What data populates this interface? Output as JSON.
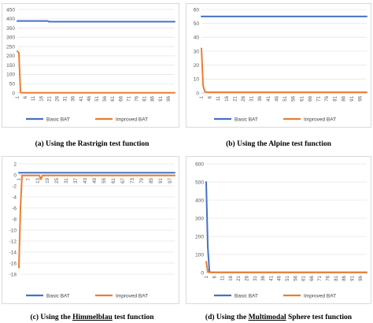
{
  "chart_data": [
    {
      "type": "line",
      "caption": "(a)  Using the Rastrigin test function",
      "ylim": [
        0,
        450
      ],
      "yticks": [
        0,
        50,
        100,
        150,
        200,
        250,
        300,
        350,
        400,
        450
      ],
      "xticks": [
        1,
        6,
        11,
        16,
        21,
        26,
        31,
        36,
        41,
        46,
        51,
        56,
        61,
        66,
        71,
        76,
        81,
        86,
        91,
        96
      ],
      "x_count": 100,
      "legend_position": "bottom",
      "series": [
        {
          "name": "Basic BAT",
          "color": "#4472c4",
          "points": [
            [
              1,
              388
            ],
            [
              20,
              388
            ],
            [
              21,
              384
            ],
            [
              100,
              384
            ]
          ]
        },
        {
          "name": "Improved BAT",
          "color": "#ed7d31",
          "points": [
            [
              1,
              225
            ],
            [
              2,
              215
            ],
            [
              3,
              5
            ],
            [
              4,
              1
            ],
            [
              100,
              1
            ]
          ]
        }
      ]
    },
    {
      "type": "line",
      "caption": "(b) Using the Alpine test function",
      "ylim": [
        0,
        60
      ],
      "yticks": [
        0,
        10,
        20,
        30,
        40,
        50,
        60
      ],
      "xticks": [
        1,
        6,
        11,
        16,
        21,
        26,
        31,
        36,
        41,
        46,
        51,
        56,
        61,
        66,
        71,
        76,
        81,
        86,
        91,
        96
      ],
      "x_count": 100,
      "legend_position": "bottom",
      "series": [
        {
          "name": "Basic BAT",
          "color": "#4472c4",
          "points": [
            [
              1,
              55
            ],
            [
              100,
              55
            ]
          ]
        },
        {
          "name": "Improved BAT",
          "color": "#ed7d31",
          "points": [
            [
              1,
              32
            ],
            [
              2,
              5
            ],
            [
              3,
              1
            ],
            [
              4,
              0.5
            ],
            [
              100,
              0.5
            ]
          ]
        }
      ]
    },
    {
      "type": "line",
      "caption_prefix": "(c) Using the ",
      "caption_under": "Himmelblau",
      "caption_suffix": " test function",
      "ylim": [
        -18,
        2
      ],
      "yticks": [
        -18,
        -16,
        -14,
        -12,
        -10,
        -8,
        -6,
        -4,
        -2,
        0,
        2
      ],
      "xticks": [
        1,
        7,
        13,
        19,
        25,
        31,
        37,
        43,
        49,
        55,
        61,
        67,
        73,
        79,
        85,
        91,
        97
      ],
      "x_count": 100,
      "x_axis_at": 0,
      "legend_position": "bottom",
      "series": [
        {
          "name": "Basic BAT",
          "color": "#4472c4",
          "points": [
            [
              1,
              0.4
            ],
            [
              100,
              0.4
            ]
          ]
        },
        {
          "name": "Improved BAT",
          "color": "#ed7d31",
          "points": [
            [
              1,
              -16.8
            ],
            [
              2,
              -6
            ],
            [
              3,
              -0.1
            ],
            [
              14,
              -0.1
            ],
            [
              15,
              -0.8
            ],
            [
              16,
              -0.1
            ],
            [
              100,
              -0.1
            ]
          ]
        }
      ]
    },
    {
      "type": "line",
      "caption_prefix": "(d) Using the ",
      "caption_under": "Multimodal",
      "caption_suffix": " Sphere test function",
      "ylim": [
        0,
        600
      ],
      "yticks": [
        0,
        100,
        200,
        300,
        400,
        500,
        600
      ],
      "xticks": [
        1,
        6,
        11,
        16,
        21,
        26,
        31,
        36,
        41,
        46,
        51,
        56,
        61,
        66,
        71,
        76,
        81,
        86,
        91,
        96
      ],
      "x_count": 100,
      "legend_position": "bottom",
      "series": [
        {
          "name": "Basic BAT",
          "color": "#4472c4",
          "points": [
            [
              1,
              500
            ],
            [
              2,
              140
            ],
            [
              3,
              5
            ],
            [
              4,
              1
            ],
            [
              100,
              1
            ]
          ]
        },
        {
          "name": "Improved BAT",
          "color": "#ed7d31",
          "points": [
            [
              1,
              60
            ],
            [
              2,
              4
            ],
            [
              3,
              1
            ],
            [
              100,
              1
            ]
          ]
        }
      ]
    }
  ]
}
